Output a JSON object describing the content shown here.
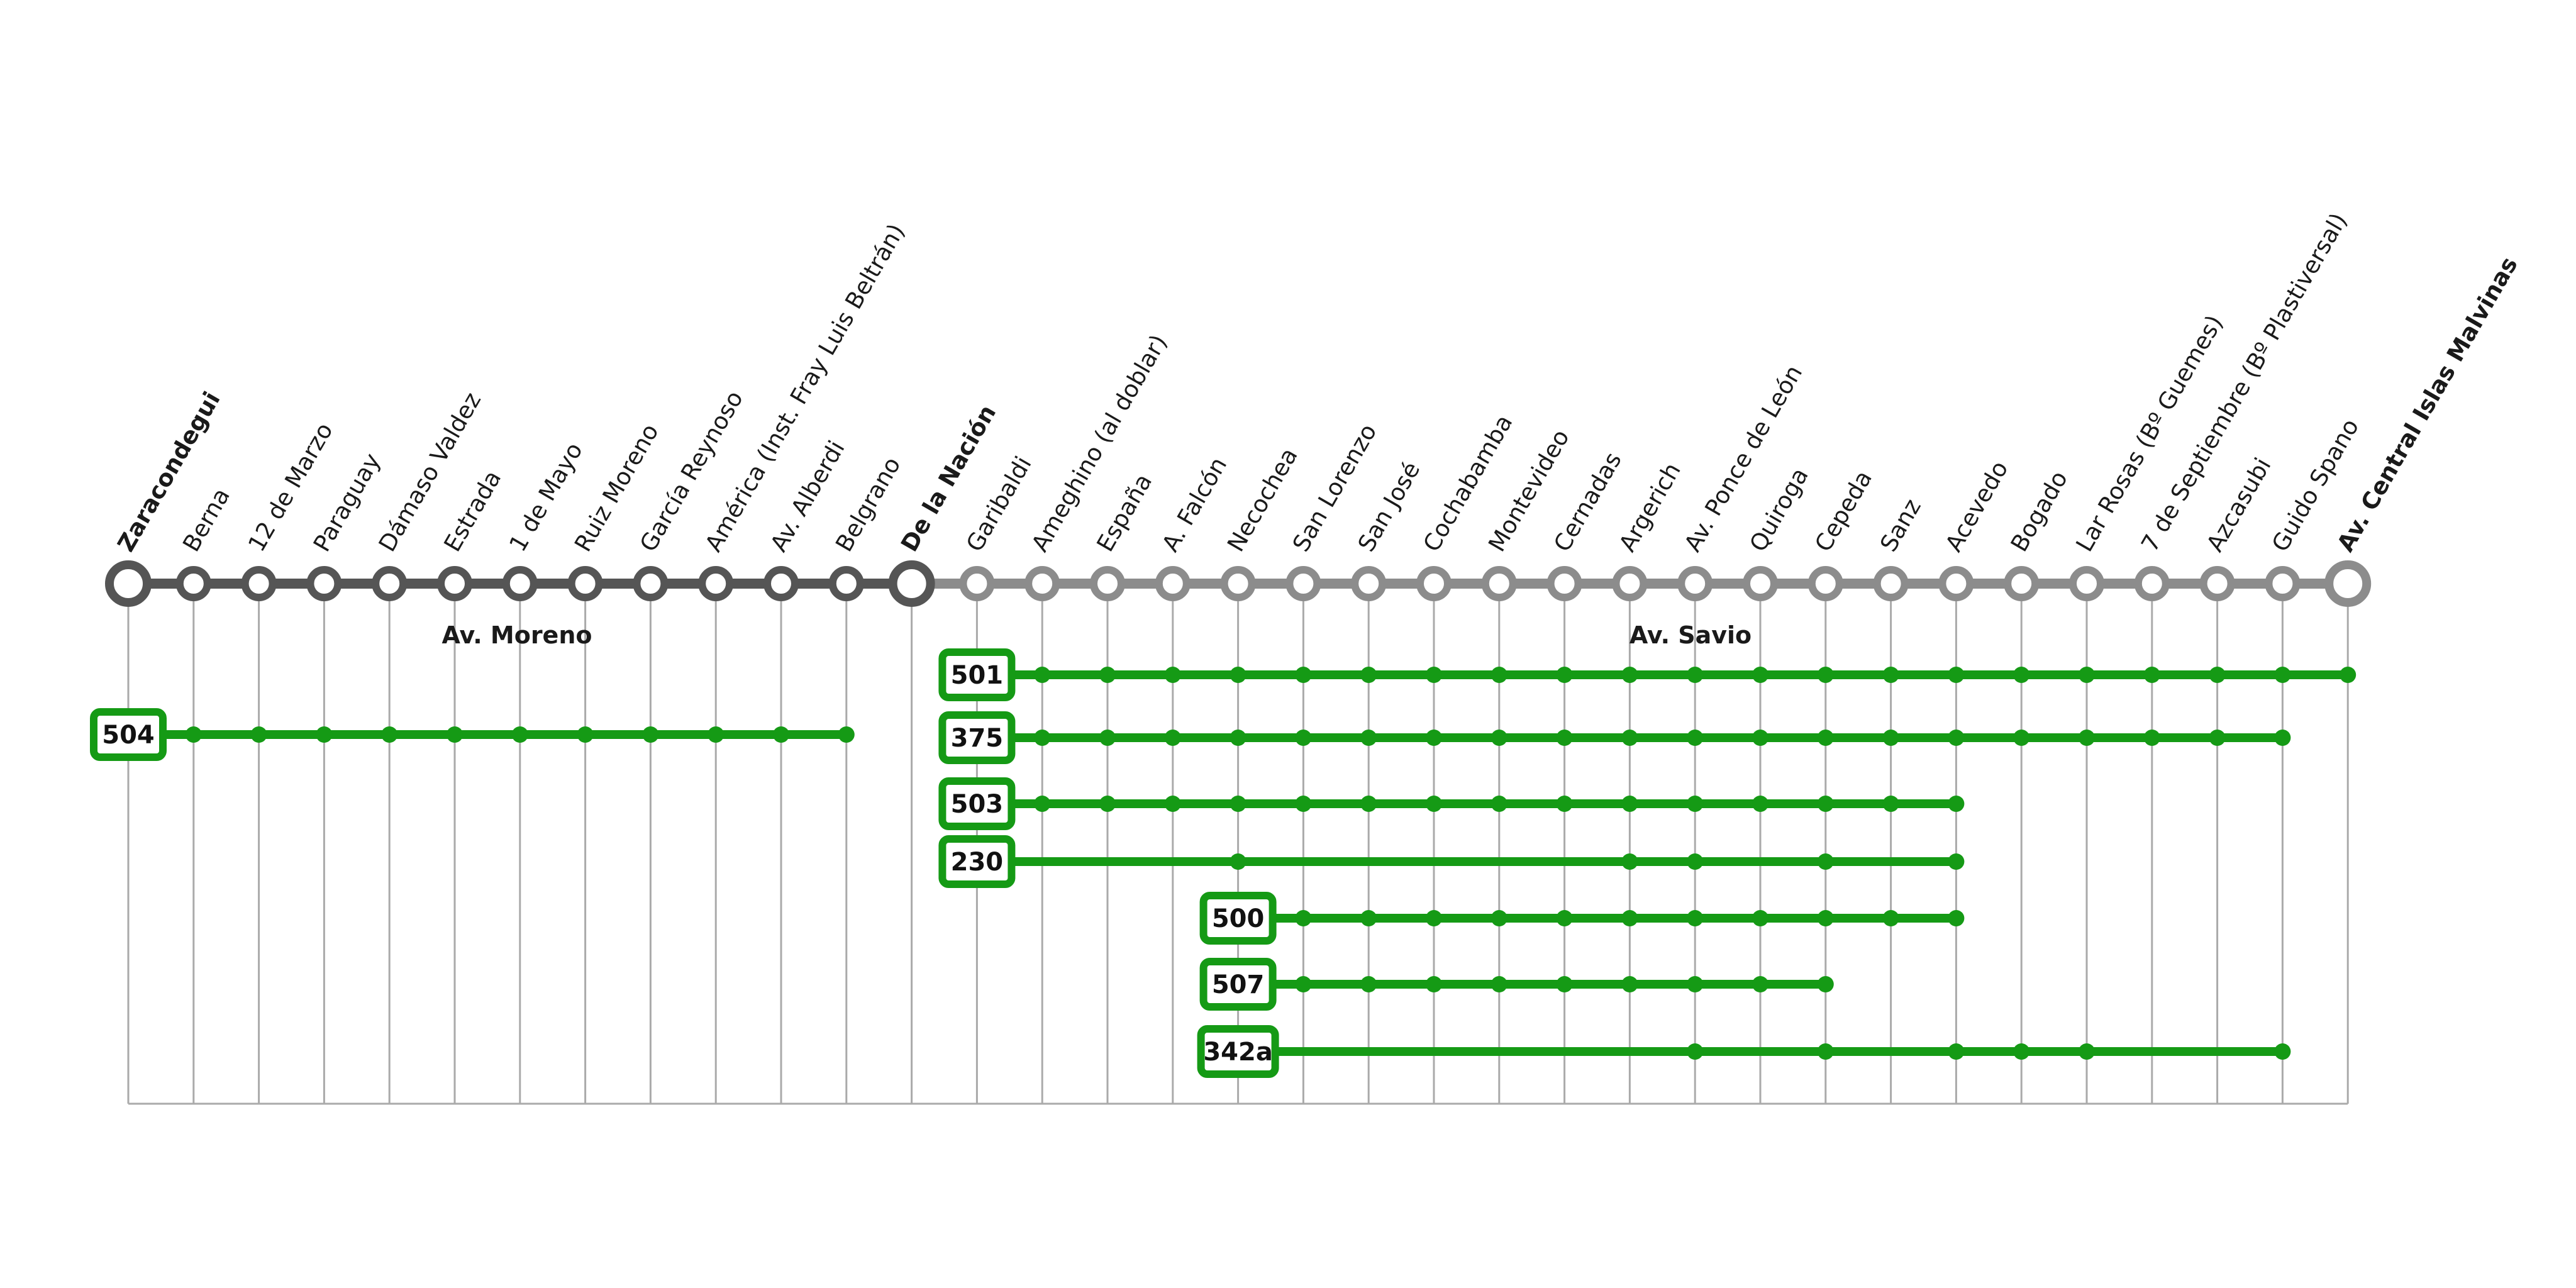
{
  "stops": [
    {
      "name": "Zaracondegui",
      "major": true,
      "segment": "dark"
    },
    {
      "name": "Berna",
      "major": false,
      "segment": "dark"
    },
    {
      "name": "12 de Marzo",
      "major": false,
      "segment": "dark"
    },
    {
      "name": "Paraguay",
      "major": false,
      "segment": "dark"
    },
    {
      "name": "Dámaso Valdez",
      "major": false,
      "segment": "dark"
    },
    {
      "name": "Estrada",
      "major": false,
      "segment": "dark"
    },
    {
      "name": "1 de Mayo",
      "major": false,
      "segment": "dark"
    },
    {
      "name": "Ruiz Moreno",
      "major": false,
      "segment": "dark"
    },
    {
      "name": "García Reynoso",
      "major": false,
      "segment": "dark"
    },
    {
      "name": "América (Inst. Fray Luis Beltrán)",
      "major": false,
      "segment": "dark"
    },
    {
      "name": "Av. Alberdi",
      "major": false,
      "segment": "dark"
    },
    {
      "name": "Belgrano",
      "major": false,
      "segment": "dark"
    },
    {
      "name": "De la Nación",
      "major": true,
      "segment": "dark"
    },
    {
      "name": "Garibaldi",
      "major": false,
      "segment": "light"
    },
    {
      "name": "Ameghino (al doblar)",
      "major": false,
      "segment": "light"
    },
    {
      "name": "España",
      "major": false,
      "segment": "light"
    },
    {
      "name": "A. Falcón",
      "major": false,
      "segment": "light"
    },
    {
      "name": "Necochea",
      "major": false,
      "segment": "light"
    },
    {
      "name": "San Lorenzo",
      "major": false,
      "segment": "light"
    },
    {
      "name": "San José",
      "major": false,
      "segment": "light"
    },
    {
      "name": "Cochabamba",
      "major": false,
      "segment": "light"
    },
    {
      "name": "Montevideo",
      "major": false,
      "segment": "light"
    },
    {
      "name": "Cernadas",
      "major": false,
      "segment": "light"
    },
    {
      "name": "Argerich",
      "major": false,
      "segment": "light"
    },
    {
      "name": "Av. Ponce de León",
      "major": false,
      "segment": "light"
    },
    {
      "name": "Quiroga",
      "major": false,
      "segment": "light"
    },
    {
      "name": "Cepeda",
      "major": false,
      "segment": "light"
    },
    {
      "name": "Sanz",
      "major": false,
      "segment": "light"
    },
    {
      "name": "Acevedo",
      "major": false,
      "segment": "light"
    },
    {
      "name": "Bogado",
      "major": false,
      "segment": "light"
    },
    {
      "name": "Lar Rosas (Bº Guemes)",
      "major": false,
      "segment": "light"
    },
    {
      "name": "7 de Septiembre (Bº Plastiversal)",
      "major": false,
      "segment": "light"
    },
    {
      "name": "Azcasubi",
      "major": false,
      "segment": "light"
    },
    {
      "name": "Guido Spano",
      "major": false,
      "segment": "light"
    },
    {
      "name": "Av. Central Islas Malvinas",
      "major": true,
      "segment": "light"
    }
  ],
  "streets": [
    {
      "name": "Av. Moreno",
      "segment": "dark"
    },
    {
      "name": "Av. Savio",
      "segment": "light"
    }
  ],
  "routes": [
    {
      "number": "504",
      "box_stop": 0,
      "start": 1,
      "end": 11,
      "stops": [
        1,
        2,
        3,
        4,
        5,
        6,
        7,
        8,
        9,
        10,
        11
      ]
    },
    {
      "number": "501",
      "box_stop": 13,
      "start": 14,
      "end": 34,
      "stops": [
        14,
        15,
        16,
        17,
        18,
        19,
        20,
        21,
        22,
        23,
        24,
        25,
        26,
        27,
        28,
        29,
        30,
        31,
        32,
        33,
        34
      ]
    },
    {
      "number": "375",
      "box_stop": 13,
      "start": 14,
      "end": 33,
      "stops": [
        14,
        15,
        16,
        17,
        18,
        19,
        20,
        21,
        22,
        23,
        24,
        25,
        26,
        27,
        28,
        29,
        30,
        31,
        32,
        33
      ]
    },
    {
      "number": "503",
      "box_stop": 13,
      "start": 14,
      "end": 28,
      "stops": [
        14,
        15,
        16,
        17,
        18,
        19,
        20,
        21,
        22,
        23,
        24,
        25,
        26,
        27,
        28
      ]
    },
    {
      "number": "230",
      "box_stop": 13,
      "start": 14,
      "end": 28,
      "stops": [
        17,
        23,
        24,
        26,
        28
      ]
    },
    {
      "number": "500",
      "box_stop": 17,
      "start": 18,
      "end": 28,
      "stops": [
        18,
        19,
        20,
        21,
        22,
        23,
        24,
        25,
        26,
        27,
        28
      ]
    },
    {
      "number": "507",
      "box_stop": 17,
      "start": 18,
      "end": 26,
      "stops": [
        18,
        19,
        20,
        21,
        22,
        23,
        24,
        25,
        26
      ]
    },
    {
      "number": "342a",
      "box_stop": 17,
      "start": 18,
      "end": 33,
      "stops": [
        24,
        26,
        28,
        29,
        30,
        33
      ]
    }
  ],
  "colors": {
    "dark_line": "#555555",
    "light_line": "#8c8c8c",
    "route": "#159a15",
    "guide": "#aaaaaa"
  }
}
